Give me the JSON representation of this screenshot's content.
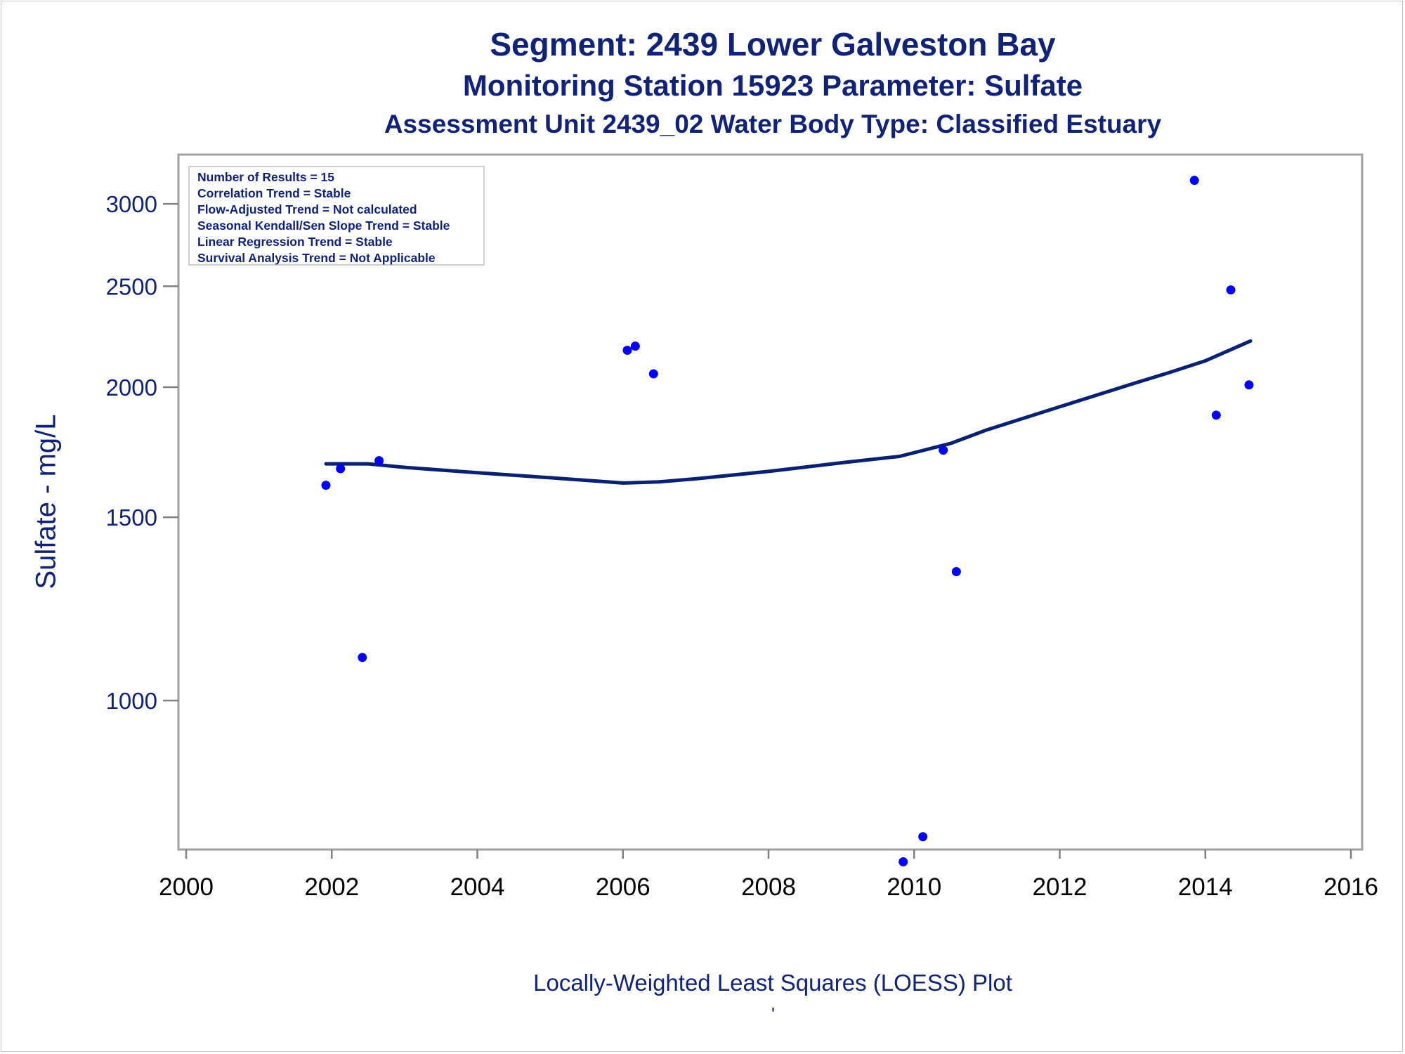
{
  "titles": {
    "line1": "Segment: 2439  Lower Galveston Bay",
    "line2": "Monitoring Station 15923 Parameter: Sulfate",
    "line3": "Assessment Unit 2439_02   Water Body Type: Classified Estuary"
  },
  "footnote_mark": "'",
  "stats": [
    "Number of Results = 15",
    "Correlation Trend = Stable",
    "Flow-Adjusted Trend = Not calculated",
    "Seasonal Kendall/Sen Slope Trend = Stable",
    "Linear Regression Trend = Stable",
    "Survival Analysis Trend = Not Applicable"
  ],
  "colors": {
    "text": "#112277",
    "points": "#0000ff",
    "loess_line": "#0a2070",
    "axis": "#808080"
  },
  "chart_data": {
    "type": "scatter",
    "xlabel": "Locally-Weighted Least Squares (LOESS) Plot",
    "ylabel": "Sulfate - mg/L",
    "y_scale": "log",
    "xlim": [
      2000,
      2016
    ],
    "ylim": [
      690,
      3200
    ],
    "x_ticks": [
      2000,
      2002,
      2004,
      2006,
      2008,
      2010,
      2012,
      2014,
      2016
    ],
    "y_ticks": [
      1000,
      1500,
      2000,
      2500,
      3000
    ],
    "grid": false,
    "points": [
      {
        "x": 2001.92,
        "y": 1610
      },
      {
        "x": 2002.12,
        "y": 1670
      },
      {
        "x": 2002.42,
        "y": 1100
      },
      {
        "x": 2002.65,
        "y": 1700
      },
      {
        "x": 2006.06,
        "y": 2170
      },
      {
        "x": 2006.17,
        "y": 2190
      },
      {
        "x": 2006.42,
        "y": 2060
      },
      {
        "x": 2009.85,
        "y": 700
      },
      {
        "x": 2010.12,
        "y": 740
      },
      {
        "x": 2010.4,
        "y": 1740
      },
      {
        "x": 2010.58,
        "y": 1330
      },
      {
        "x": 2013.85,
        "y": 3160
      },
      {
        "x": 2014.15,
        "y": 1880
      },
      {
        "x": 2014.35,
        "y": 2480
      },
      {
        "x": 2014.6,
        "y": 2010
      }
    ],
    "loess_line": [
      {
        "x": 2001.92,
        "y": 1688
      },
      {
        "x": 2002.5,
        "y": 1688
      },
      {
        "x": 2003.0,
        "y": 1675
      },
      {
        "x": 2004.0,
        "y": 1655
      },
      {
        "x": 2005.0,
        "y": 1637
      },
      {
        "x": 2006.0,
        "y": 1618
      },
      {
        "x": 2006.5,
        "y": 1622
      },
      {
        "x": 2007.0,
        "y": 1633
      },
      {
        "x": 2008.0,
        "y": 1660
      },
      {
        "x": 2009.0,
        "y": 1692
      },
      {
        "x": 2009.8,
        "y": 1716
      },
      {
        "x": 2010.5,
        "y": 1766
      },
      {
        "x": 2011.0,
        "y": 1820
      },
      {
        "x": 2012.0,
        "y": 1915
      },
      {
        "x": 2013.0,
        "y": 2015
      },
      {
        "x": 2013.5,
        "y": 2065
      },
      {
        "x": 2014.0,
        "y": 2120
      },
      {
        "x": 2014.62,
        "y": 2215
      }
    ]
  }
}
